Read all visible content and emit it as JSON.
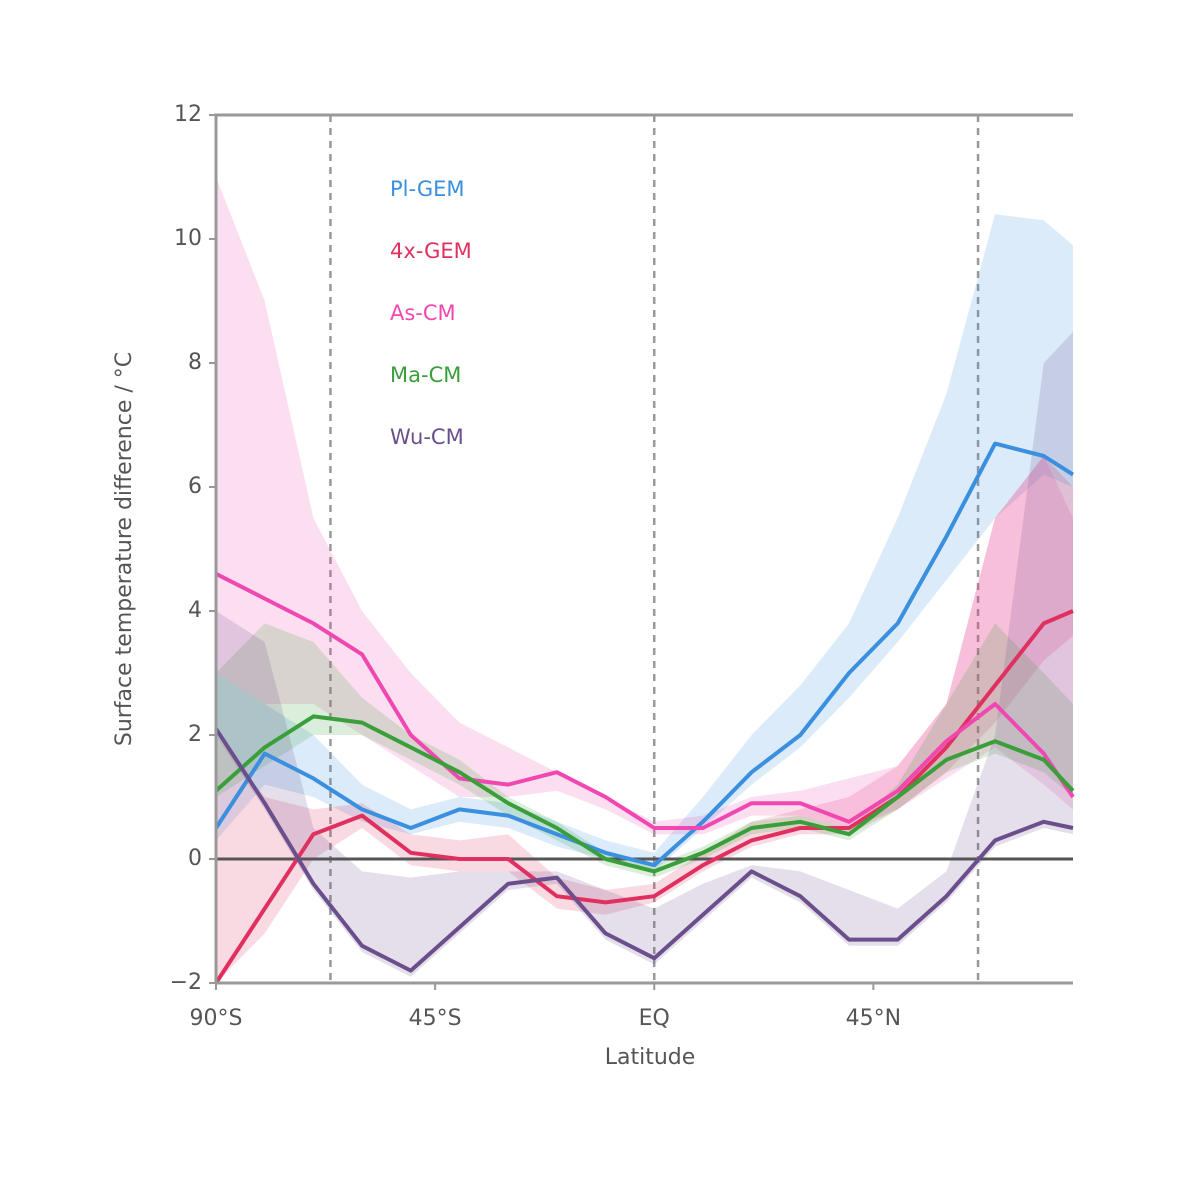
{
  "chart_data": {
    "type": "line",
    "xlabel": "Latitude",
    "ylabel": "Surface temperature difference / °C",
    "x": [
      -90,
      -80,
      -70,
      -60,
      -50,
      -40,
      -30,
      -20,
      -10,
      0,
      10,
      20,
      30,
      40,
      50,
      60,
      70,
      80,
      86
    ],
    "xlim": [
      -90,
      86
    ],
    "xticks": [
      {
        "value": -90,
        "label": "90°S"
      },
      {
        "value": -45,
        "label": "45°S"
      },
      {
        "value": 0,
        "label": "EQ"
      },
      {
        "value": 45,
        "label": "45°N"
      }
    ],
    "ylim": [
      -2,
      12
    ],
    "yticks": [
      {
        "value": -2,
        "label": "−2"
      },
      0,
      2,
      4,
      6,
      8,
      10,
      12
    ],
    "vlines": [
      -66.5,
      0,
      66.5
    ],
    "hline": 0,
    "series": [
      {
        "name": "Pl-GEM",
        "color": "#3a8fde",
        "values": [
          0.5,
          1.7,
          1.3,
          0.8,
          0.5,
          0.8,
          0.7,
          0.4,
          0.1,
          -0.1,
          0.6,
          1.4,
          2.0,
          3.0,
          3.8,
          5.2,
          6.7,
          6.5,
          6.2
        ],
        "lower": [
          0.3,
          1.2,
          1.0,
          0.6,
          0.4,
          0.6,
          0.5,
          0.2,
          0.0,
          -0.2,
          0.5,
          1.2,
          1.8,
          2.6,
          3.5,
          4.5,
          5.5,
          6.2,
          6.0
        ],
        "upper": [
          3.0,
          2.5,
          2.0,
          1.2,
          0.8,
          1.0,
          0.9,
          0.6,
          0.3,
          0.1,
          1.0,
          2.0,
          2.8,
          3.8,
          5.5,
          7.5,
          10.4,
          10.3,
          9.9
        ]
      },
      {
        "name": "4x-GEM",
        "color": "#e0305f",
        "values": [
          -2.0,
          -0.8,
          0.4,
          0.7,
          0.1,
          0.0,
          0.0,
          -0.6,
          -0.7,
          -0.6,
          -0.1,
          0.3,
          0.5,
          0.5,
          1.0,
          1.8,
          2.8,
          3.8,
          4.0
        ],
        "lower": [
          -2.0,
          -1.2,
          0.0,
          0.5,
          -0.1,
          -0.2,
          -0.2,
          -0.8,
          -0.9,
          -0.7,
          -0.2,
          0.2,
          0.4,
          0.4,
          0.8,
          1.4,
          2.2,
          3.2,
          3.6
        ],
        "upper": [
          2.0,
          1.0,
          0.8,
          0.9,
          0.4,
          0.3,
          0.4,
          -0.3,
          -0.5,
          -0.4,
          0.1,
          0.6,
          0.8,
          1.0,
          1.5,
          2.5,
          5.5,
          6.5,
          6.0
        ]
      },
      {
        "name": "As-CM",
        "color": "#f048b0",
        "values": [
          4.6,
          4.2,
          3.8,
          3.3,
          2.0,
          1.3,
          1.2,
          1.4,
          1.0,
          0.5,
          0.5,
          0.9,
          0.9,
          0.6,
          1.1,
          1.9,
          2.5,
          1.7,
          1.0
        ],
        "lower": [
          3.0,
          2.5,
          2.5,
          2.0,
          1.5,
          1.0,
          1.0,
          1.1,
          0.8,
          0.4,
          0.4,
          0.7,
          0.7,
          0.5,
          0.8,
          1.3,
          1.8,
          1.2,
          0.8
        ],
        "upper": [
          11.0,
          9.0,
          5.5,
          4.0,
          3.0,
          2.2,
          1.8,
          1.4,
          1.0,
          0.6,
          0.7,
          1.0,
          1.1,
          1.3,
          1.5,
          2.5,
          5.5,
          6.5,
          5.5
        ]
      },
      {
        "name": "Ma-CM",
        "color": "#3a9e3a",
        "values": [
          1.1,
          1.8,
          2.3,
          2.2,
          1.8,
          1.4,
          0.9,
          0.5,
          0.0,
          -0.2,
          0.1,
          0.5,
          0.6,
          0.4,
          1.0,
          1.6,
          1.9,
          1.6,
          1.1
        ],
        "lower": [
          1.0,
          1.5,
          2.0,
          2.0,
          1.6,
          1.2,
          0.7,
          0.3,
          -0.1,
          -0.3,
          0.0,
          0.4,
          0.5,
          0.3,
          0.8,
          1.4,
          1.7,
          1.4,
          1.0
        ],
        "upper": [
          3.0,
          3.8,
          3.5,
          2.6,
          2.0,
          1.6,
          1.0,
          0.6,
          0.1,
          -0.1,
          0.2,
          0.6,
          0.7,
          0.5,
          1.2,
          2.5,
          3.8,
          3.0,
          2.5
        ]
      },
      {
        "name": "Wu-CM",
        "color": "#6b4f8c",
        "values": [
          2.1,
          0.9,
          -0.4,
          -1.4,
          -1.8,
          -1.1,
          -0.4,
          -0.3,
          -1.2,
          -1.6,
          -0.9,
          -0.2,
          -0.6,
          -1.3,
          -1.3,
          -0.6,
          0.3,
          0.6,
          0.5
        ],
        "lower": [
          2.0,
          0.8,
          -0.5,
          -1.5,
          -1.9,
          -1.2,
          -0.5,
          -0.4,
          -1.3,
          -1.7,
          -1.0,
          -0.3,
          -0.7,
          -1.4,
          -1.4,
          -0.7,
          0.2,
          0.5,
          0.4
        ],
        "upper": [
          4.0,
          3.5,
          0.5,
          -0.2,
          -0.3,
          -0.2,
          -0.2,
          -0.2,
          -0.5,
          -0.8,
          -0.4,
          -0.1,
          -0.2,
          -0.5,
          -0.8,
          -0.2,
          2.0,
          8.0,
          8.5
        ]
      }
    ]
  }
}
